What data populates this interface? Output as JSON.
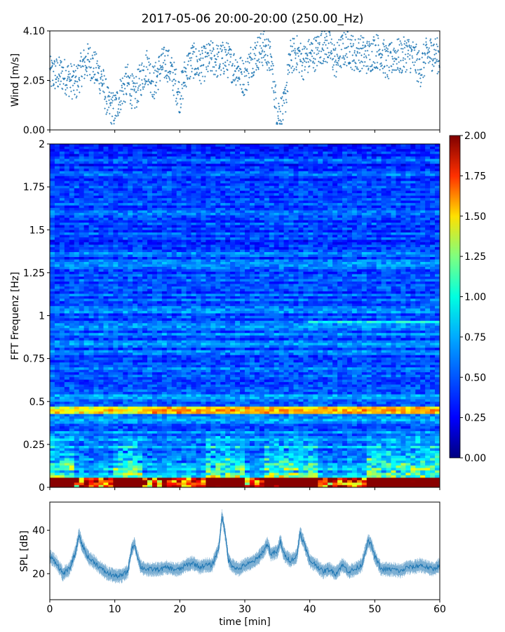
{
  "chart_data": [
    {
      "type": "scatter",
      "title": "2017-05-06 20:00-20:00 (250.00_Hz)",
      "ylabel": "Wind [m/s]",
      "xlabel": "",
      "xlim": [
        0,
        60
      ],
      "ylim": [
        0.0,
        4.1
      ],
      "yticks": [
        "0.00",
        "2.05",
        "4.10"
      ],
      "grid": false,
      "series": [
        {
          "color": "#1f77b4",
          "marker": "+",
          "envelope": [
            [
              0,
              2.3
            ],
            [
              2,
              2.3
            ],
            [
              4,
              1.9
            ],
            [
              5,
              2.6
            ],
            [
              6,
              2.9
            ],
            [
              7,
              2.5
            ],
            [
              8,
              2.1
            ],
            [
              9,
              1.0
            ],
            [
              10,
              0.8
            ],
            [
              11,
              1.6
            ],
            [
              12,
              2.0
            ],
            [
              13,
              1.4
            ],
            [
              14,
              2.1
            ],
            [
              15,
              2.7
            ],
            [
              16,
              1.9
            ],
            [
              17,
              2.6
            ],
            [
              18,
              2.8
            ],
            [
              19,
              2.2
            ],
            [
              20,
              1.4
            ],
            [
              21,
              2.5
            ],
            [
              22,
              2.9
            ],
            [
              23,
              2.6
            ],
            [
              24,
              2.8
            ],
            [
              25,
              3.0
            ],
            [
              26,
              2.8
            ],
            [
              27,
              3.0
            ],
            [
              28,
              2.7
            ],
            [
              29,
              2.5
            ],
            [
              30,
              2.1
            ],
            [
              31,
              2.9
            ],
            [
              32,
              3.2
            ],
            [
              33,
              3.4
            ],
            [
              34,
              2.9
            ],
            [
              35,
              0.7
            ],
            [
              36,
              0.8
            ],
            [
              37,
              3.0
            ],
            [
              38,
              3.2
            ],
            [
              39,
              2.8
            ],
            [
              40,
              3.1
            ],
            [
              41,
              3.2
            ],
            [
              42,
              3.5
            ],
            [
              43,
              3.4
            ],
            [
              44,
              2.8
            ],
            [
              45,
              3.3
            ],
            [
              46,
              3.4
            ],
            [
              47,
              3.1
            ],
            [
              48,
              3.2
            ],
            [
              49,
              3.0
            ],
            [
              50,
              3.3
            ],
            [
              51,
              3.2
            ],
            [
              52,
              2.7
            ],
            [
              53,
              3.1
            ],
            [
              54,
              3.0
            ],
            [
              55,
              3.2
            ],
            [
              56,
              3.0
            ],
            [
              57,
              2.5
            ],
            [
              58,
              3.1
            ],
            [
              59,
              3.2
            ],
            [
              60,
              3.0
            ]
          ]
        }
      ]
    },
    {
      "type": "heatmap",
      "ylabel": "FFT Frequenz [Hz]",
      "xlabel": "",
      "xlim": [
        0,
        60
      ],
      "ylim": [
        0,
        2
      ],
      "yticks": [
        "0",
        "0.25",
        "0.5",
        "0.75",
        "1",
        "1.25",
        "1.5",
        "1.75",
        "2"
      ],
      "colormap": "jet",
      "colorbar": {
        "range": [
          0.0,
          2.0
        ],
        "ticks": [
          "0.00",
          "0.25",
          "0.50",
          "0.75",
          "1.00",
          "1.25",
          "1.50",
          "1.75",
          "2.00"
        ],
        "colors": [
          "#00007f",
          "#0000ff",
          "#007fff",
          "#00ffff",
          "#7fff7f",
          "#ffff00",
          "#ff7f00",
          "#ff0000",
          "#7f0000"
        ]
      },
      "features": [
        {
          "frequency_hz": 0.45,
          "description_band": "persistent band",
          "intensity": 0.9
        },
        {
          "frequency_hz": 0.04,
          "description_band": "low-frequency energy",
          "intensity": 1.6
        }
      ],
      "hot_intervals_min": [
        [
          0,
          4
        ],
        [
          10,
          14
        ],
        [
          24,
          30
        ],
        [
          33,
          41
        ],
        [
          49,
          60
        ]
      ]
    },
    {
      "type": "line",
      "ylabel": "SPL [dB]",
      "xlabel": "time [min]",
      "xlim": [
        0,
        60
      ],
      "ylim": [
        8,
        53
      ],
      "xticks": [
        "0",
        "10",
        "20",
        "30",
        "40",
        "50",
        "60"
      ],
      "yticks": [
        "20",
        "40"
      ],
      "series": [
        {
          "color": "#1f77b4",
          "x": [
            0,
            1,
            2,
            3,
            4,
            4.5,
            5,
            6,
            7,
            8,
            9,
            10,
            11,
            12,
            12.5,
            13,
            13.5,
            14,
            15,
            16,
            17,
            18,
            19,
            20,
            21,
            22,
            23,
            24,
            25,
            26,
            26.5,
            27,
            27.5,
            28,
            29,
            30,
            31,
            32,
            33,
            33.5,
            34,
            35,
            35.5,
            36,
            37,
            38,
            38.5,
            39,
            40,
            41,
            42,
            43,
            44,
            45,
            46,
            47,
            48,
            48.5,
            49,
            49.5,
            50,
            51,
            52,
            53,
            54,
            55,
            56,
            57,
            58,
            59,
            60
          ],
          "values": [
            28,
            25,
            20,
            22,
            30,
            38,
            33,
            27,
            25,
            22,
            20,
            19,
            19,
            21,
            30,
            34,
            28,
            23,
            22,
            22,
            22,
            23,
            22,
            22,
            24,
            25,
            23,
            24,
            24,
            32,
            47,
            38,
            26,
            24,
            22,
            24,
            25,
            27,
            31,
            34,
            29,
            30,
            35,
            29,
            26,
            28,
            39,
            35,
            26,
            24,
            21,
            22,
            20,
            24,
            21,
            22,
            24,
            30,
            35,
            33,
            28,
            22,
            22,
            22,
            21,
            23,
            23,
            24,
            23,
            22,
            24
          ],
          "noise_band_db": 3
        }
      ]
    }
  ]
}
